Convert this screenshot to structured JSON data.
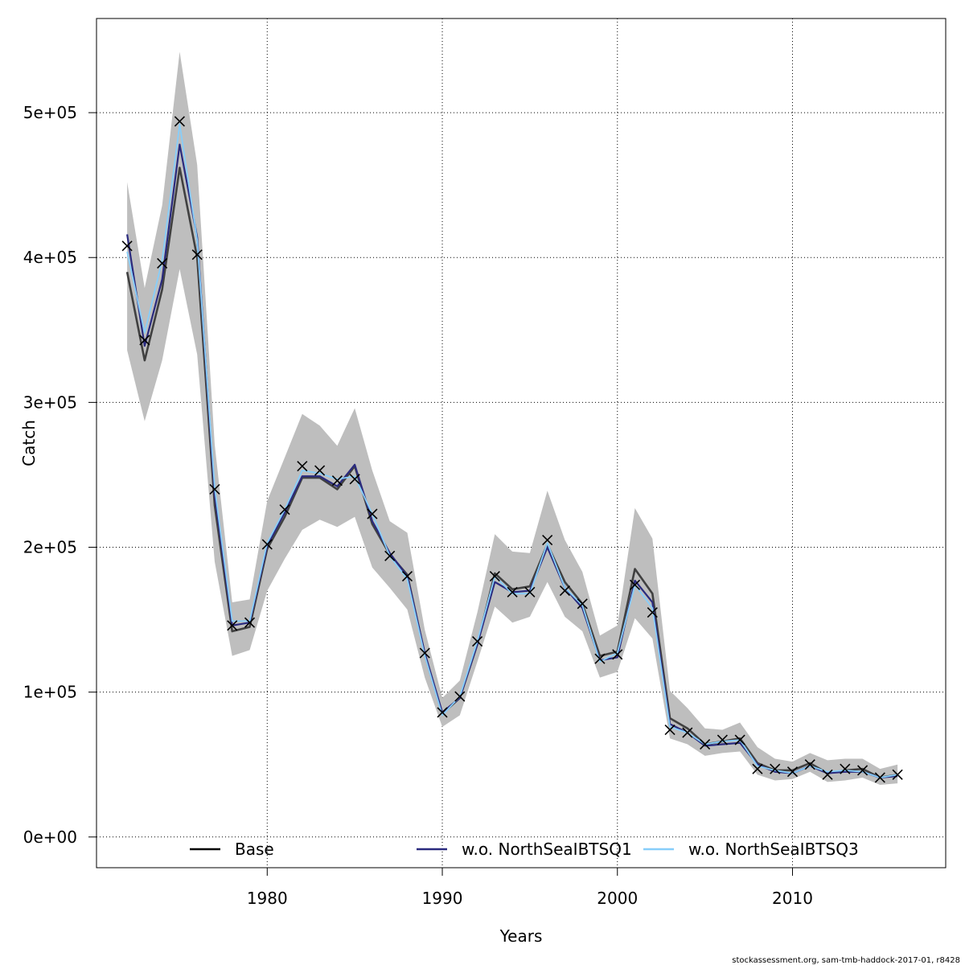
{
  "chart_data": {
    "type": "line",
    "title": "",
    "xlabel": "Years",
    "ylabel": "Catch",
    "xlim": [
      1970.25,
      2018.75
    ],
    "ylim": [
      -21200,
      565000
    ],
    "grid": true,
    "x_ticks": [
      1980,
      1990,
      2000,
      2010
    ],
    "x_tick_labels": [
      "1980",
      "1990",
      "2000",
      "2010"
    ],
    "y_ticks": [
      0,
      100000,
      200000,
      300000,
      400000,
      500000
    ],
    "y_tick_labels": [
      "0e+00",
      "1e+05",
      "2e+05",
      "3e+05",
      "4e+05",
      "5e+05"
    ],
    "years": [
      1972,
      1973,
      1974,
      1975,
      1976,
      1977,
      1978,
      1979,
      1980,
      1981,
      1982,
      1983,
      1984,
      1985,
      1986,
      1987,
      1988,
      1989,
      1990,
      1991,
      1992,
      1993,
      1994,
      1995,
      1996,
      1997,
      1998,
      1999,
      2000,
      2001,
      2002,
      2003,
      2004,
      2005,
      2006,
      2007,
      2008,
      2009,
      2010,
      2011,
      2012,
      2013,
      2014,
      2015,
      2016
    ],
    "confidence_band": {
      "name": "Base 95% CI",
      "color": "#bebebe",
      "lower": [
        336000,
        287000,
        329000,
        392000,
        333000,
        190000,
        125000,
        129000,
        170000,
        192000,
        212000,
        219000,
        214000,
        221000,
        186000,
        172000,
        157000,
        110000,
        76000,
        84000,
        121000,
        159000,
        148000,
        152000,
        176000,
        152000,
        142000,
        110000,
        114000,
        151000,
        137000,
        68000,
        64000,
        56000,
        58000,
        59000,
        43000,
        39000,
        40000,
        45000,
        38000,
        39000,
        41000,
        36000,
        37000
      ],
      "upper": [
        452000,
        379000,
        436000,
        542000,
        464000,
        271000,
        162000,
        164000,
        232000,
        262000,
        292000,
        284000,
        270000,
        296000,
        253000,
        218000,
        210000,
        143000,
        96000,
        108000,
        155000,
        209000,
        197000,
        196000,
        239000,
        205000,
        183000,
        139000,
        146000,
        227000,
        206000,
        101000,
        89000,
        75000,
        74000,
        79000,
        62000,
        54000,
        52000,
        58000,
        53000,
        54000,
        54000,
        47000,
        50000
      ]
    },
    "series": [
      {
        "name": "Base",
        "color": "#404040",
        "values": [
          390000,
          329000,
          378000,
          462000,
          400000,
          229000,
          142000,
          145000,
          199000,
          221000,
          248000,
          248000,
          240000,
          256000,
          216000,
          195000,
          181000,
          126000,
          85000,
          96000,
          133000,
          182000,
          171000,
          173000,
          202000,
          176000,
          161000,
          125000,
          128000,
          185000,
          168000,
          82000,
          75000,
          64000,
          66000,
          68000,
          51000,
          46000,
          46000,
          51000,
          44000,
          46000,
          47000,
          41000,
          43000
        ]
      },
      {
        "name": "w.o. NorthSeaIBTSQ1",
        "color": "#2a2a7e",
        "values": [
          416000,
          339000,
          385000,
          478000,
          414000,
          236000,
          146000,
          148000,
          201000,
          224000,
          249000,
          249000,
          242000,
          257000,
          218000,
          196000,
          180000,
          127000,
          86000,
          96000,
          133000,
          176000,
          169000,
          170000,
          200000,
          172000,
          158000,
          122000,
          124000,
          177000,
          162000,
          78000,
          72000,
          63000,
          64000,
          65000,
          50000,
          45000,
          44000,
          49000,
          44000,
          45000,
          45000,
          41000,
          42000
        ]
      },
      {
        "name": "w.o. NorthSeaIBTSQ3",
        "color": "#87cefa",
        "values": [
          404000,
          348000,
          398000,
          492000,
          412000,
          241000,
          149000,
          149000,
          203000,
          226000,
          253000,
          251000,
          247000,
          249000,
          223000,
          194000,
          178000,
          125000,
          84000,
          97000,
          135000,
          180000,
          168000,
          168000,
          203000,
          172000,
          160000,
          121000,
          127000,
          174000,
          158000,
          76000,
          72000,
          64000,
          66000,
          67000,
          49000,
          46000,
          44000,
          49000,
          45000,
          46000,
          45000,
          41000,
          43000
        ]
      }
    ],
    "observations": {
      "name": "Observed catch",
      "marker": "x",
      "values": [
        408000,
        343000,
        396000,
        494000,
        402000,
        240000,
        146000,
        148000,
        202000,
        226000,
        256000,
        253000,
        246000,
        247000,
        223000,
        194000,
        180000,
        127000,
        86000,
        97000,
        135000,
        180000,
        169000,
        169000,
        205000,
        170000,
        161000,
        123000,
        126000,
        174000,
        155000,
        74000,
        72000,
        64000,
        67000,
        67000,
        47000,
        47000,
        45000,
        50000,
        43000,
        47000,
        46000,
        41000,
        43000
      ]
    },
    "legend": {
      "placement": "bottom-inside",
      "entries": [
        {
          "label": "Base",
          "color": "#000000"
        },
        {
          "label": "w.o. NorthSeaIBTSQ1",
          "color": "#2a2a7e"
        },
        {
          "label": "w.o. NorthSeaIBTSQ3",
          "color": "#87cefa"
        }
      ]
    }
  },
  "footer_credit": "stockassessment.org, sam-tmb-haddock-2017-01, r8428"
}
